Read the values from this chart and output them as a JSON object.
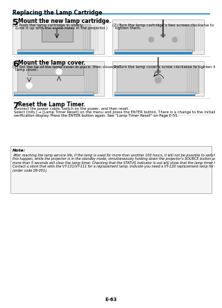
{
  "page_title": "Replacing the Lamp Cartridge",
  "title_color": "#000000",
  "title_line_color": "#1E88C8",
  "bg_color": "#FFFFFF",
  "step5_num": "5",
  "step5_title": "Mount the new lamp cartridge.",
  "step5_sub1": "(1) Push the lamp cartridge in slowly.\n    (Line it up with the screw holes in the projector.)",
  "step5_sub2": "(2) Turn the lamp cartridge’s two screws clockwise to\n    tighten them.",
  "step6_num": "6",
  "step6_title": "Mount the lamp cover.",
  "step6_sub1": "(1) Set the tip of the lamp cover in place, then close the\n    lamp cover.",
  "step6_sub2": "(2) Turn the lamp cover’s screw clockwise to tighten it.",
  "step7_num": "7",
  "step7_title": "Reset the Lamp Timer.",
  "step7_body": "Connect the power cable, switch on the power, and then reset.\nSelect [Info.] → [Lamp Timer Reset] on the menu and press the ENTER button. There is a change to the initialization\nverification display. Press the ENTER button again. See “Lamp Timer Reset” on Page E-55.",
  "note_title": "Note:",
  "note_body": "After reaching the lamp service life, if the lamp is used for more than another 100 hours, it will not be possible to switch on the power. Should\nthis happen, while the projector is in the standby mode, simultaneously holding down the projector’s SOURCE button and AUTO button for\nmore than 5 seconds will clear the lamp timer. Checking that the STATUS indicator is out will show that the lamp timer has been cleared.\nContact a store that sells the VT-131/VT-111 for a replacement lamp. Indicate you need a VT-120 replacement lamp for the VT-131/VT-111\n(order code 28-051).",
  "page_num": "E-63",
  "divider_color": "#CCCCCC",
  "note_box_color": "#F5F5F5",
  "note_border_color": "#AAAAAA",
  "step_num_color": "#000000",
  "img_bg": "#E8E8E8",
  "img_border": "#AAAAAA"
}
